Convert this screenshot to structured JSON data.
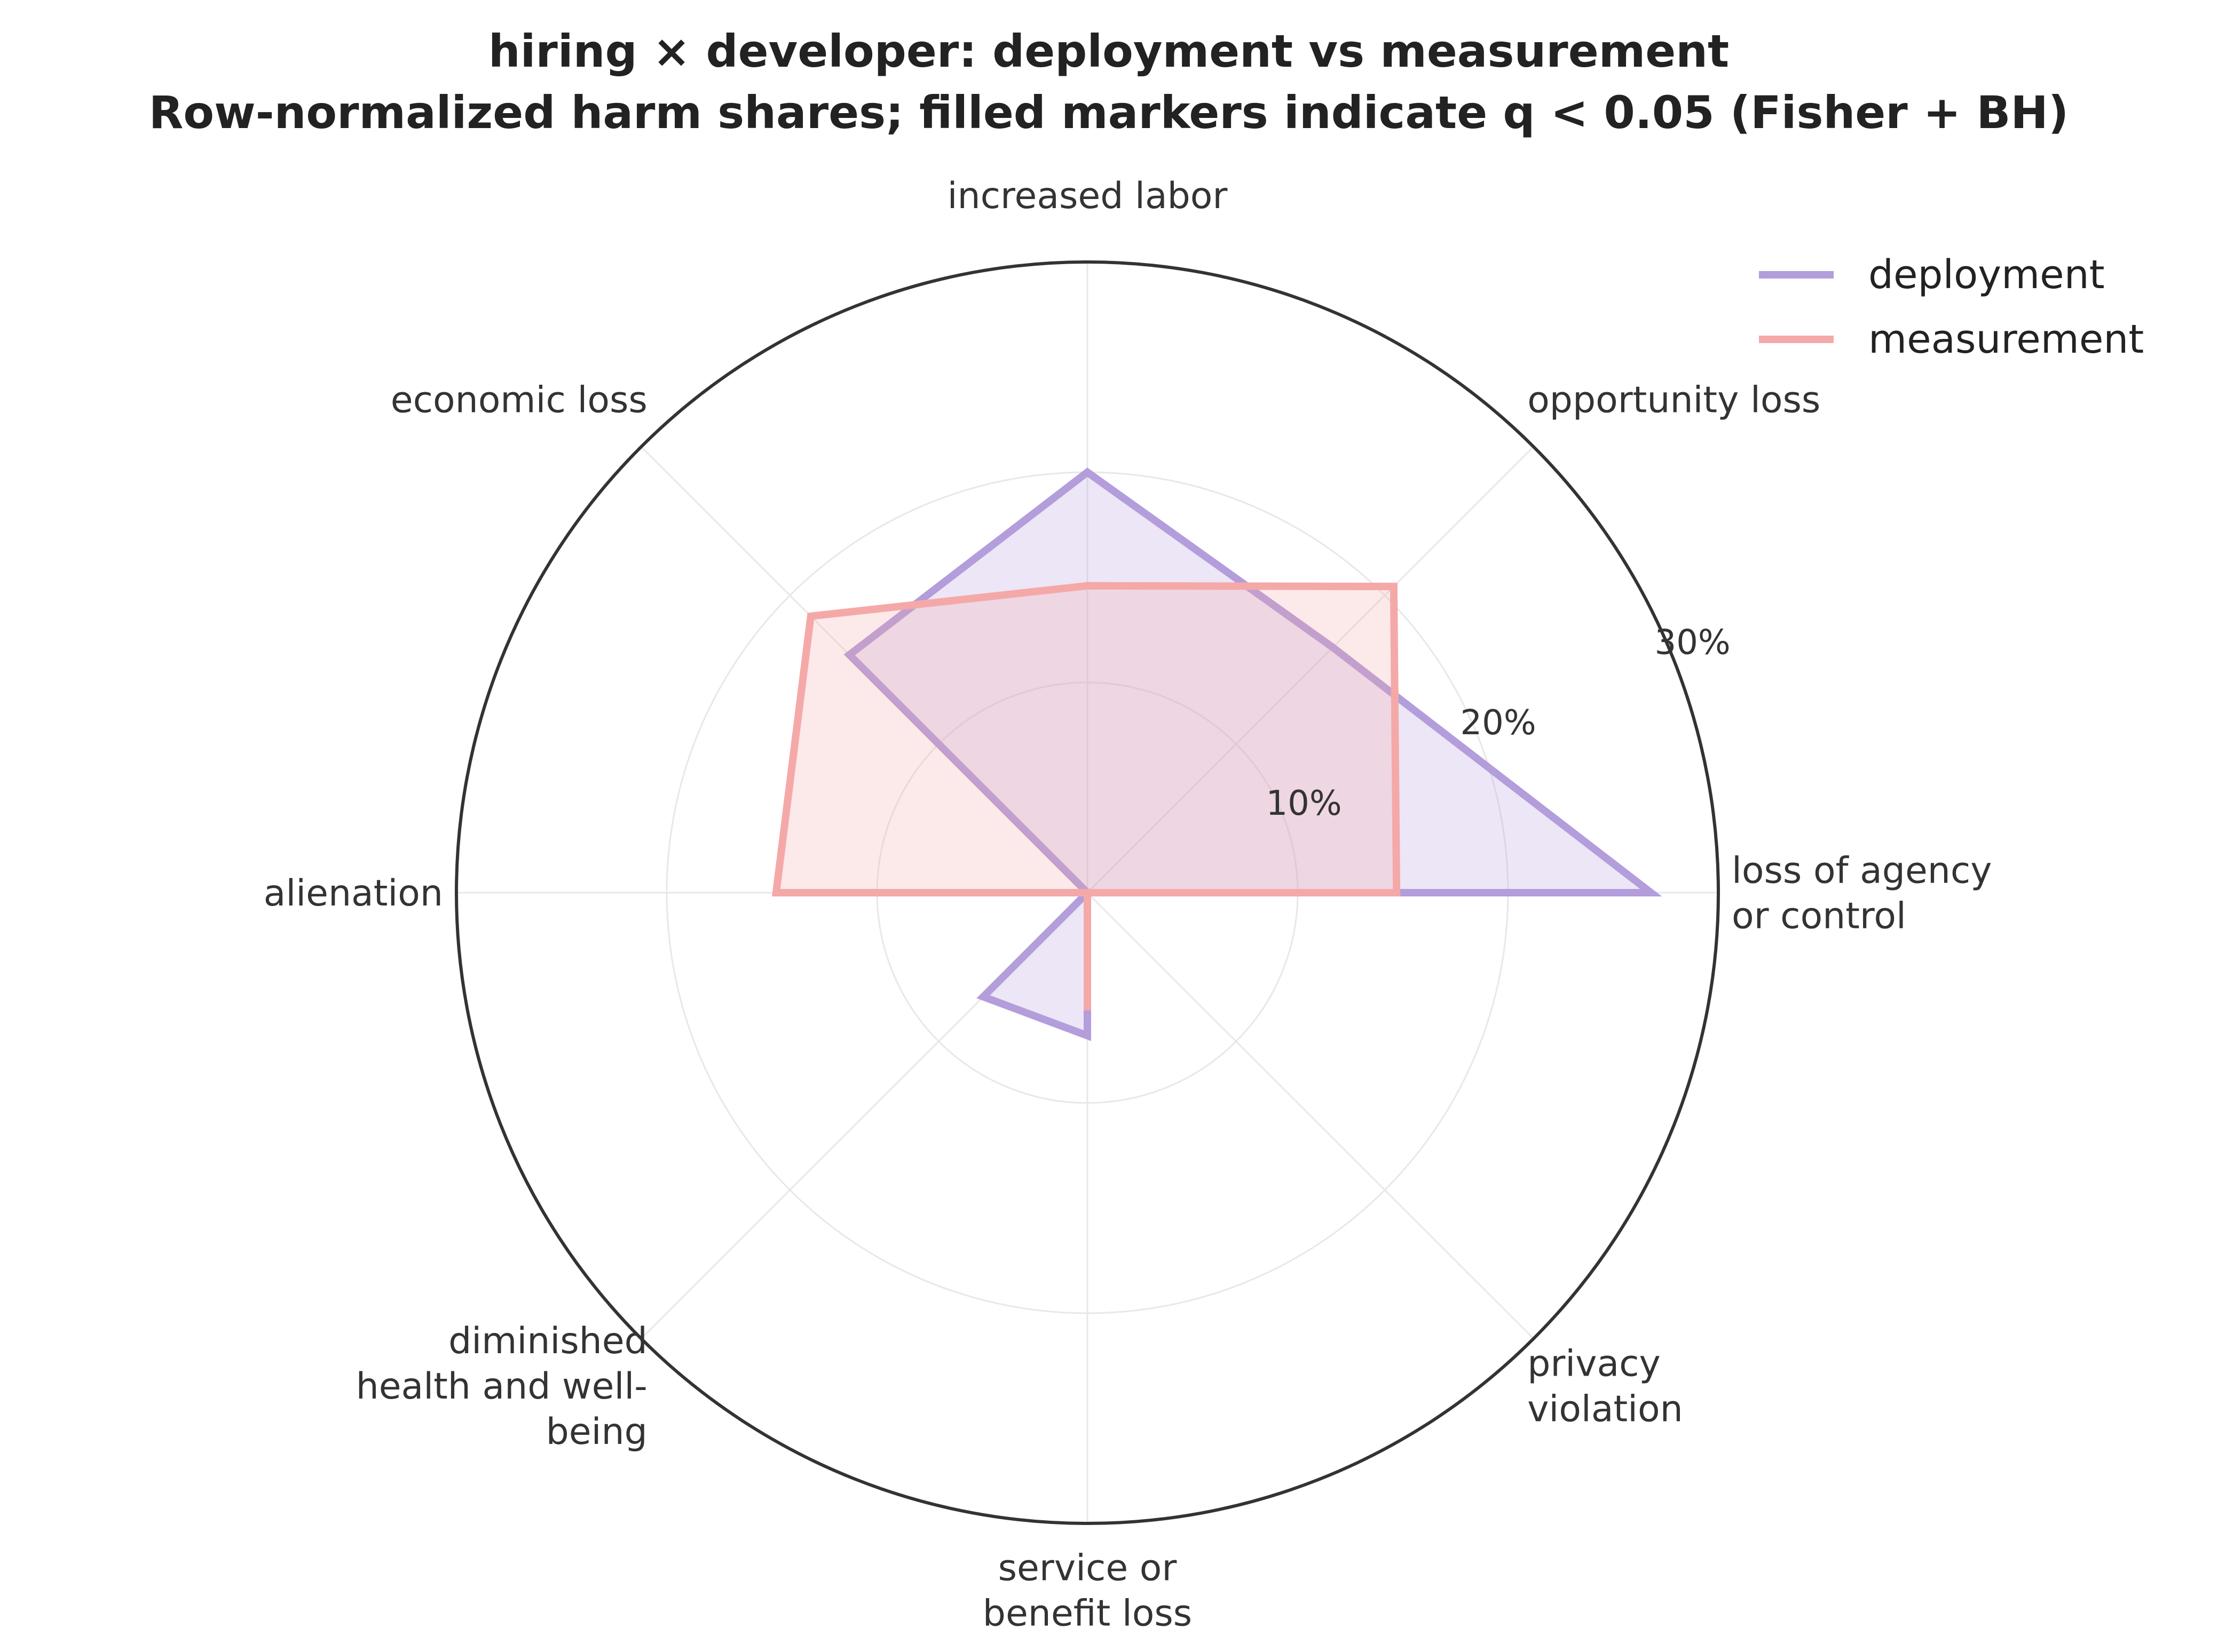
{
  "colors": {
    "deployment": "#b39ddb",
    "measurement": "#f4a9a8",
    "frame": "#333333",
    "grid": "#e8e8e8"
  },
  "chart_data": {
    "type": "radar",
    "title_line1": "hiring × developer: deployment vs measurement",
    "title_line2": "Row-normalized harm shares; filled markers indicate q < 0.05 (Fisher + BH)",
    "categories": [
      [
        "loss of agency",
        "or control"
      ],
      [
        "opportunity loss"
      ],
      [
        "increased labor"
      ],
      [
        "economic loss"
      ],
      [
        "alienation"
      ],
      [
        "diminished",
        "health and well-",
        "being"
      ],
      [
        "service or",
        "benefit loss"
      ],
      [
        "privacy",
        "violation"
      ]
    ],
    "rmax": 30,
    "ticks": [
      {
        "value": 10,
        "label": "10%"
      },
      {
        "value": 20,
        "label": "20%"
      },
      {
        "value": 30,
        "label": "30%"
      }
    ],
    "legend_position": "top-right",
    "series": [
      {
        "name": "deployment",
        "color": "#b39ddb",
        "values": [
          26.8,
          16.5,
          20.0,
          16.0,
          0.0,
          7.0,
          6.8,
          0.0
        ]
      },
      {
        "name": "measurement",
        "color": "#f4a9a8",
        "values": [
          14.7,
          20.6,
          14.6,
          18.6,
          14.8,
          0.0,
          5.6,
          0.0
        ]
      }
    ]
  }
}
